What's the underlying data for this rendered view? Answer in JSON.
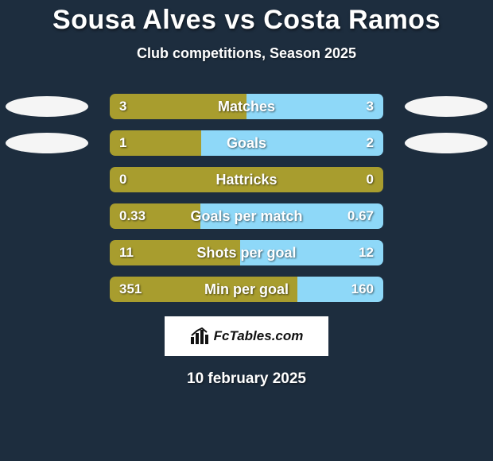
{
  "title": {
    "player1": "Sousa Alves",
    "vs": "vs",
    "player2": "Costa Ramos"
  },
  "subtitle": "Club competitions, Season 2025",
  "colors": {
    "left": "#a89d2e",
    "right": "#8ed8f8",
    "badge_left": "#f5f5f5",
    "badge_right": "#f5f5f5",
    "background": "#1d2d3e"
  },
  "stats": [
    {
      "label": "Matches",
      "left_val": "3",
      "right_val": "3",
      "left_pct": 50.0,
      "show_badges": true
    },
    {
      "label": "Goals",
      "left_val": "1",
      "right_val": "2",
      "left_pct": 33.3,
      "show_badges": true
    },
    {
      "label": "Hattricks",
      "left_val": "0",
      "right_val": "0",
      "left_pct": 100.0,
      "show_badges": false
    },
    {
      "label": "Goals per match",
      "left_val": "0.33",
      "right_val": "0.67",
      "left_pct": 33.0,
      "show_badges": false
    },
    {
      "label": "Shots per goal",
      "left_val": "11",
      "right_val": "12",
      "left_pct": 47.8,
      "show_badges": false
    },
    {
      "label": "Min per goal",
      "left_val": "351",
      "right_val": "160",
      "left_pct": 68.7,
      "show_badges": false
    }
  ],
  "footer": {
    "brand": "FcTables.com",
    "date": "10 february 2025"
  }
}
